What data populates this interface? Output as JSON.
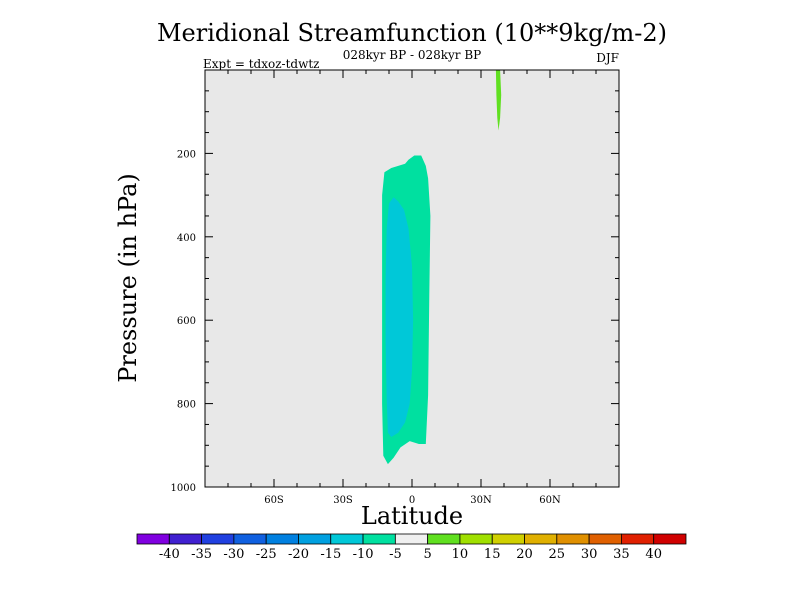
{
  "chart_data": {
    "type": "contour",
    "title": "Meridional Streamfunction (10**9kg/m-2)",
    "subtitle_left": "Expt = tdxoz-tdwtz",
    "subtitle_center": "028kyr BP - 028kyr BP",
    "subtitle_right": "DJF",
    "xlabel": "Latitude",
    "ylabel": "Pressure (in hPa)",
    "xlim": [
      -90,
      90
    ],
    "ylim": [
      0,
      1000
    ],
    "y_inverted": true,
    "x_ticks": [
      {
        "value": -60,
        "label": "60S"
      },
      {
        "value": -30,
        "label": "30S"
      },
      {
        "value": 0,
        "label": "0"
      },
      {
        "value": 30,
        "label": "30N"
      },
      {
        "value": 60,
        "label": "60N"
      }
    ],
    "y_ticks": [
      {
        "value": 200,
        "label": "200"
      },
      {
        "value": 400,
        "label": "400"
      },
      {
        "value": 600,
        "label": "600"
      },
      {
        "value": 800,
        "label": "800"
      },
      {
        "value": 1000,
        "label": "1000"
      }
    ],
    "background_color": "#e8e8e8",
    "regions": [
      {
        "level": "-10 to -5",
        "color": "#00e0a0",
        "polygon": [
          [
            -12.5,
            925
          ],
          [
            -10.5,
            945
          ],
          [
            -8,
            930
          ],
          [
            -5,
            905
          ],
          [
            -1,
            890
          ],
          [
            3,
            897
          ],
          [
            6,
            897
          ],
          [
            7,
            780
          ],
          [
            7.5,
            540
          ],
          [
            8,
            350
          ],
          [
            7,
            260
          ],
          [
            6,
            230
          ],
          [
            4,
            205
          ],
          [
            1,
            205
          ],
          [
            -1.5,
            215
          ],
          [
            -3,
            225
          ],
          [
            -6,
            230
          ],
          [
            -9,
            235
          ],
          [
            -12,
            245
          ],
          [
            -13,
            300
          ],
          [
            -13,
            450
          ],
          [
            -13,
            650
          ],
          [
            -13,
            800
          ]
        ]
      },
      {
        "level": "-15 to -10",
        "color": "#00c8d8",
        "polygon": [
          [
            -10.5,
            870
          ],
          [
            -9,
            880
          ],
          [
            -6,
            870
          ],
          [
            -3,
            845
          ],
          [
            -1,
            800
          ],
          [
            0,
            720
          ],
          [
            0.5,
            600
          ],
          [
            0,
            470
          ],
          [
            -1.5,
            380
          ],
          [
            -3.5,
            335
          ],
          [
            -6,
            315
          ],
          [
            -8,
            305
          ],
          [
            -10,
            320
          ],
          [
            -11,
            380
          ],
          [
            -11.5,
            500
          ],
          [
            -11.5,
            650
          ],
          [
            -11,
            790
          ]
        ]
      },
      {
        "level": "5 to 10",
        "color": "#60e020",
        "polygon": [
          [
            36.5,
            0
          ],
          [
            38.3,
            0
          ],
          [
            38.8,
            60
          ],
          [
            38.3,
            115
          ],
          [
            37.6,
            145
          ],
          [
            37.1,
            115
          ],
          [
            36.7,
            60
          ]
        ]
      }
    ],
    "colorbar": {
      "labels": [
        "-40",
        "-35",
        "-30",
        "-25",
        "-20",
        "-15",
        "-10",
        "-5",
        "5",
        "10",
        "15",
        "20",
        "25",
        "30",
        "35",
        "40"
      ],
      "colors": [
        "#8000e0",
        "#4020d0",
        "#2040e0",
        "#1060e0",
        "#0080e0",
        "#00a0e0",
        "#00c8d8",
        "#00e0a0",
        "#f0f0f0",
        "#60e020",
        "#a0e000",
        "#d0d000",
        "#e0b000",
        "#e09000",
        "#e06000",
        "#e02000",
        "#d00000"
      ]
    }
  }
}
